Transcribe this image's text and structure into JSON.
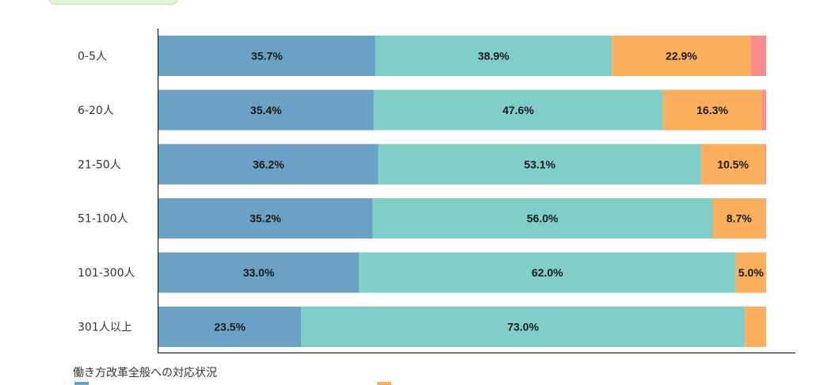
{
  "legend_title": "働き方改革全般への対応状況",
  "colors": {
    "series": [
      "#6ba1c4",
      "#7fcec7",
      "#fbae5b",
      "#fb8c8c"
    ],
    "axis": "#000000"
  },
  "chart_data": {
    "type": "bar",
    "orientation": "horizontal",
    "stacked": true,
    "normalized": true,
    "categories": [
      "0-5人",
      "6-20人",
      "21-50人",
      "51-100人",
      "101-300人",
      "301人以上"
    ],
    "series": [
      {
        "values": [
          35.7,
          35.4,
          36.2,
          35.2,
          33.0,
          23.5
        ],
        "labels": [
          "35.7%",
          "35.4%",
          "36.2%",
          "35.2%",
          "33.0%",
          "23.5%"
        ]
      },
      {
        "values": [
          38.9,
          47.6,
          53.1,
          56.0,
          62.0,
          73.0
        ],
        "labels": [
          "38.9%",
          "47.6%",
          "53.1%",
          "56.0%",
          "62.0%",
          "73.0%"
        ]
      },
      {
        "values": [
          22.9,
          16.3,
          10.5,
          8.7,
          5.0,
          3.5
        ],
        "labels": [
          "22.9%",
          "16.3%",
          "10.5%",
          "8.7%",
          "5.0%",
          ""
        ]
      },
      {
        "values": [
          2.5,
          0.7,
          0.4,
          0.1,
          0.0,
          0.0
        ],
        "labels": [
          "",
          "",
          "",
          "",
          "",
          ""
        ]
      }
    ],
    "xlim": [
      0,
      100
    ],
    "grid": false,
    "legend_position": "bottom"
  }
}
